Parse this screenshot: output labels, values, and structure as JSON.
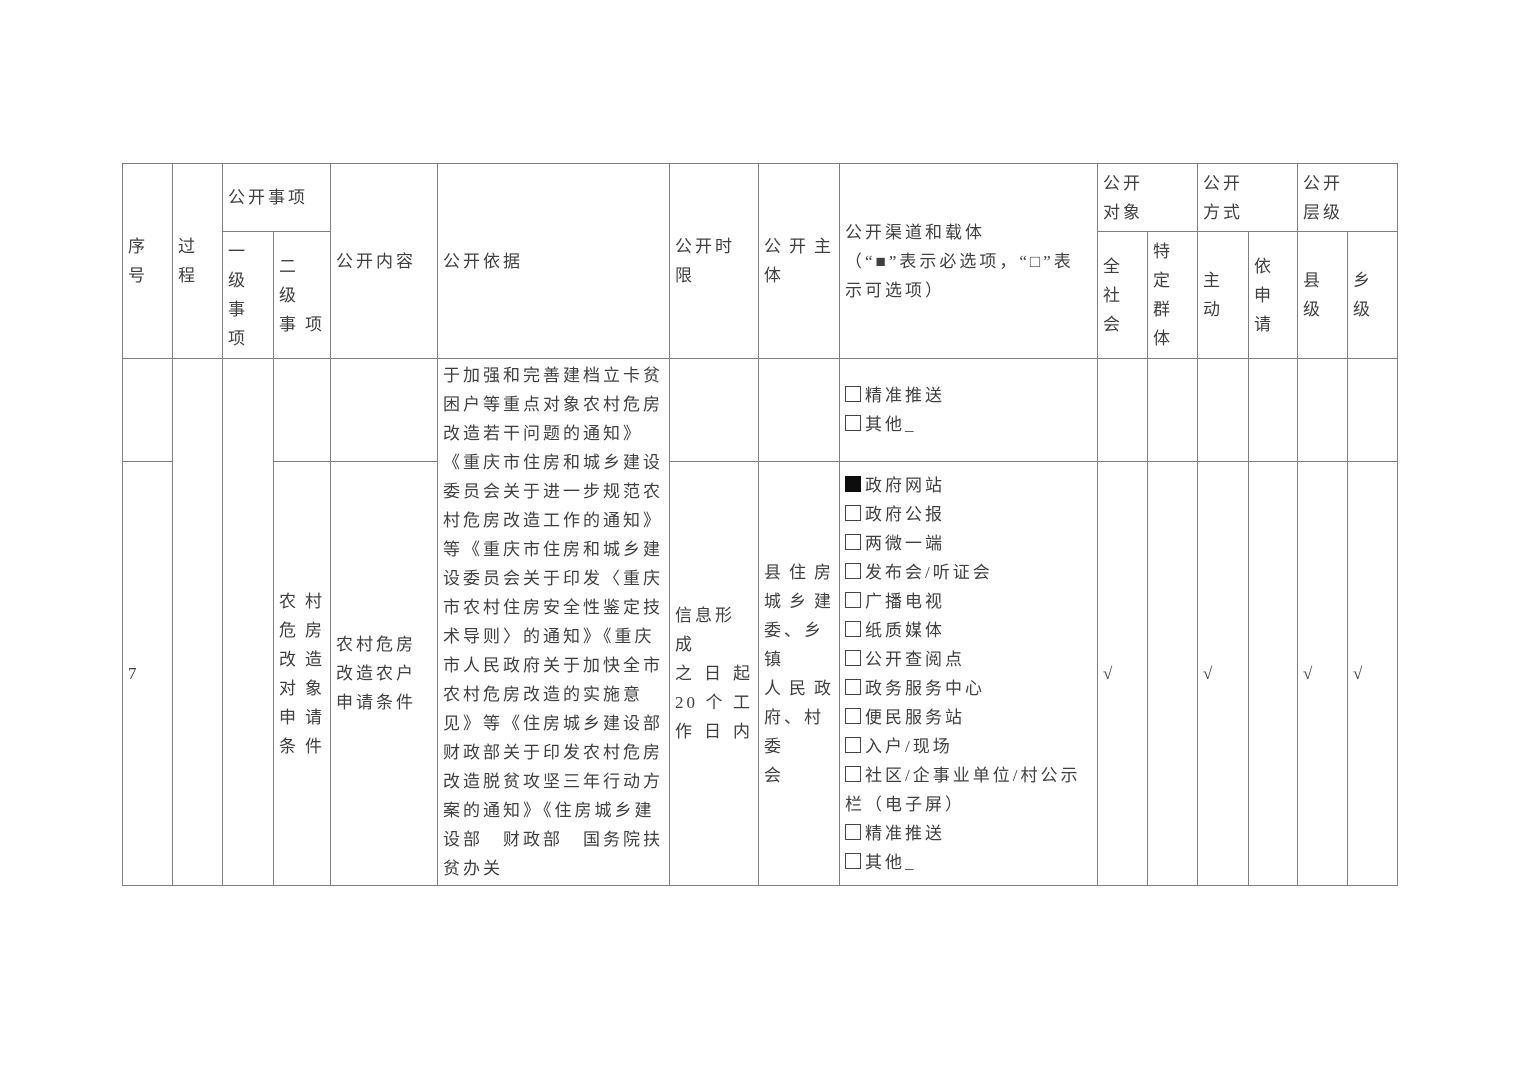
{
  "table": {
    "headers": {
      "serial": "序号",
      "process": "过\n程",
      "matters_group": "公开事项",
      "level1": "一\n级\n事\n项",
      "level2": "二 级\n事项",
      "content": "公开内容",
      "basis": "公开依据",
      "time_limit": "公开时限",
      "subject": "公开主\n体",
      "channels_title": "公开渠道和载体",
      "channels_note": "（“■”表示必选项，“□”表示可选项）",
      "target_group": "公开\n对象",
      "method_group": "公开\n方式",
      "level_group": "公开\n层级",
      "all_society": "全\n社\n会",
      "specific_groups": "特定\n群体",
      "proactive": "主\n动",
      "on_request": "依申\n请",
      "county": "县\n级",
      "township": "乡级"
    },
    "merged_basis": "于加强和完善建档立卡贫困户等重点对象农村危房改造若干问题的通知》《重庆市住房和城乡建设委员会关于进一步规范农村危房改造工作的通知》等《重庆市住房和城乡建设委员会关于印发〈重庆市农村住房安全性鉴定技术导则〉的通知》《重庆市人民政府关于加快全市农村危房改造的实施意见》等《住房城乡建设部　财政部关于印发农村危房改造脱贫攻坚三年行动方案的通知》《住房城乡建设部　财政部　国务院扶贫办关",
    "row_a": {
      "channels": [
        {
          "label": "精准推送",
          "checked": false
        },
        {
          "label": "其他_",
          "checked": false
        }
      ]
    },
    "row_b": {
      "serial": "7",
      "level2_item": "农村\n危房\n改造\n对象\n申请\n条件",
      "content": "农村危房改造农户申请条件",
      "time_limit": "信息形成\n之日起\n20个工\n作日内",
      "subject": "县住房\n城乡建\n委、乡镇\n人民政\n府、村委\n会",
      "channels": [
        {
          "label": "政府网站",
          "checked": true
        },
        {
          "label": "政府公报",
          "checked": false
        },
        {
          "label": "两微一端",
          "checked": false
        },
        {
          "label": "发布会/听证会",
          "checked": false
        },
        {
          "label": "广播电视",
          "checked": false
        },
        {
          "label": "纸质媒体",
          "checked": false
        },
        {
          "label": "公开查阅点",
          "checked": false
        },
        {
          "label": "政务服务中心",
          "checked": false
        },
        {
          "label": "便民服务站",
          "checked": false
        },
        {
          "label": "入户/现场",
          "checked": false
        },
        {
          "label": "社区/企事业单位/村公示栏（电子屏）",
          "checked": false
        },
        {
          "label": "精准推送",
          "checked": false
        },
        {
          "label": "其他_",
          "checked": false
        }
      ],
      "marks": {
        "all_society": "√",
        "specific_groups": "",
        "proactive": "√",
        "on_request": "",
        "county": "√",
        "township": "√"
      }
    }
  }
}
